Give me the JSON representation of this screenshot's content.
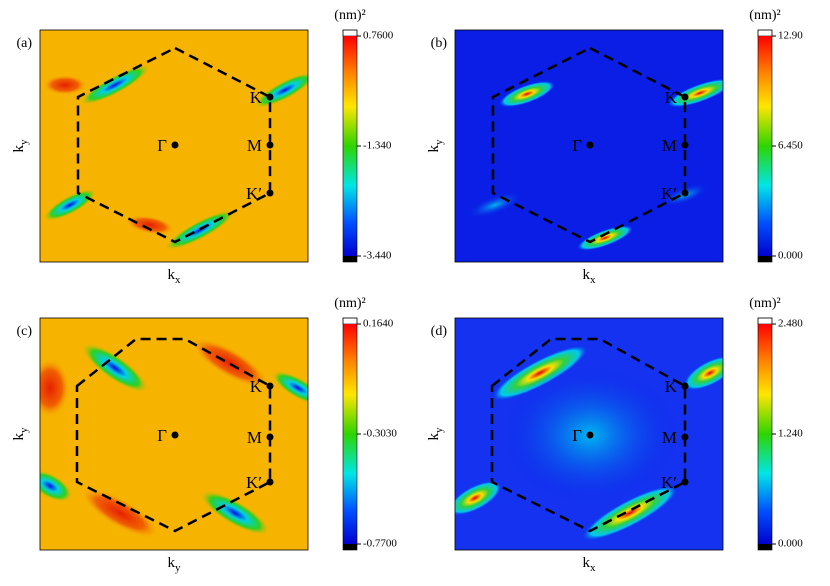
{
  "chart_data": [
    {
      "type": "contour",
      "panel_label": "(a)",
      "x_label": "k",
      "x_label_sub": "x",
      "y_label": "k",
      "y_label_sub": "y",
      "colorbar_label": "(nm)²",
      "clim": [
        -3.44,
        0.76
      ],
      "cticks": [
        {
          "value": 0.76,
          "label": "0.7600"
        },
        {
          "value": -1.34,
          "label": "-1.340"
        },
        {
          "value": -3.44,
          "label": "-3.440"
        }
      ],
      "point_labels": [
        "Γ",
        "K",
        "M",
        "K′"
      ],
      "background": "#f6b400"
    },
    {
      "type": "contour",
      "panel_label": "(b)",
      "x_label": "k",
      "x_label_sub": "x",
      "y_label": "k",
      "y_label_sub": "y",
      "colorbar_label": "(nm)²",
      "clim": [
        0,
        12.9
      ],
      "cticks": [
        {
          "value": 12.9,
          "label": "12.90"
        },
        {
          "value": 6.45,
          "label": "6.450"
        },
        {
          "value": 0,
          "label": "0.000"
        }
      ],
      "point_labels": [
        "Γ",
        "K",
        "M",
        "K′"
      ],
      "background": "#0a1ee6"
    },
    {
      "type": "contour",
      "panel_label": "(c)",
      "x_label": "k",
      "x_label_sub": "y",
      "y_label": "k",
      "y_label_sub": "y",
      "colorbar_label": "(nm)²",
      "clim": [
        -0.77,
        0.164
      ],
      "cticks": [
        {
          "value": 0.164,
          "label": "0.1640"
        },
        {
          "value": -0.303,
          "label": "-0.3030"
        },
        {
          "value": -0.77,
          "label": "-0.7700"
        }
      ],
      "point_labels": [
        "Γ",
        "K",
        "M",
        "K′"
      ],
      "background": "#f6b400"
    },
    {
      "type": "contour",
      "panel_label": "(d)",
      "x_label": "k",
      "x_label_sub": "x",
      "y_label": "k",
      "y_label_sub": "y",
      "colorbar_label": "(nm)²",
      "clim": [
        0,
        2.48
      ],
      "cticks": [
        {
          "value": 2.48,
          "label": "2.480"
        },
        {
          "value": 1.24,
          "label": "1.240"
        },
        {
          "value": 0,
          "label": "0.000"
        }
      ],
      "point_labels": [
        "Γ",
        "K",
        "M",
        "K′"
      ],
      "background": "#1432f0"
    }
  ]
}
